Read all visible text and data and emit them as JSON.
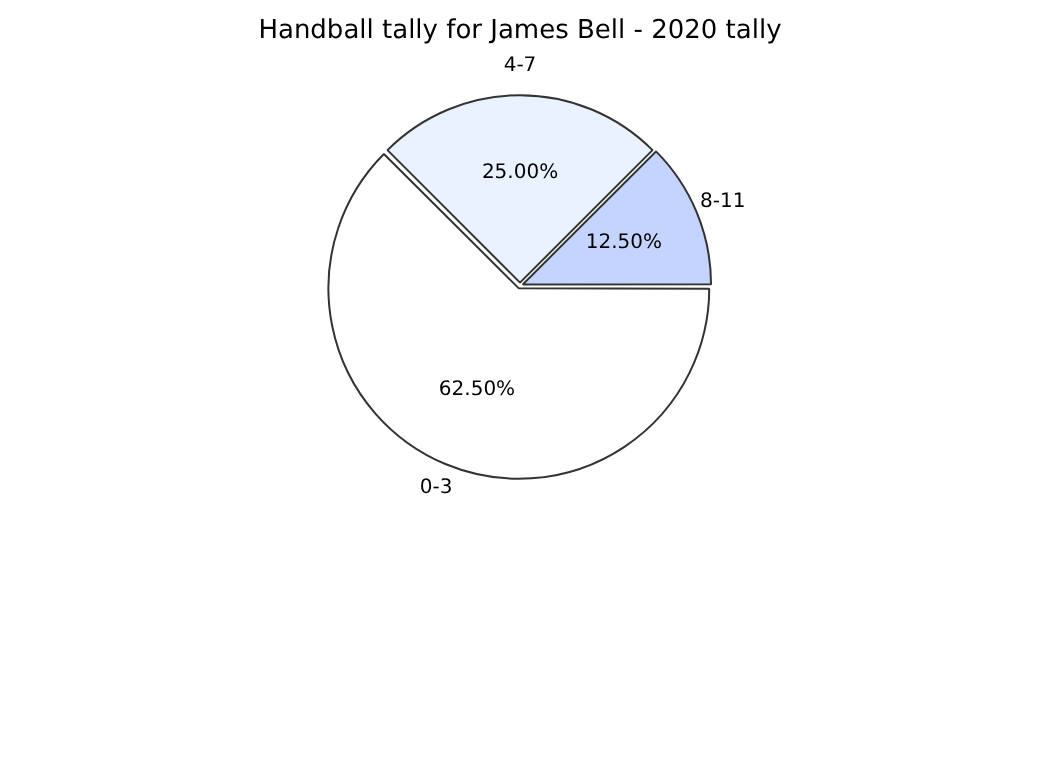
{
  "chart_data": {
    "type": "pie",
    "title": "Handball tally for James Bell - 2020 tally",
    "categories": [
      "0-3",
      "4-7",
      "8-11"
    ],
    "values": [
      62.5,
      25,
      12.5
    ],
    "colors": [
      "#ffffff",
      "#eaf1ff",
      "#c4d4ff"
    ],
    "value_labels": [
      "62.50%",
      "25.00%",
      "12.50%"
    ],
    "legend": false
  }
}
